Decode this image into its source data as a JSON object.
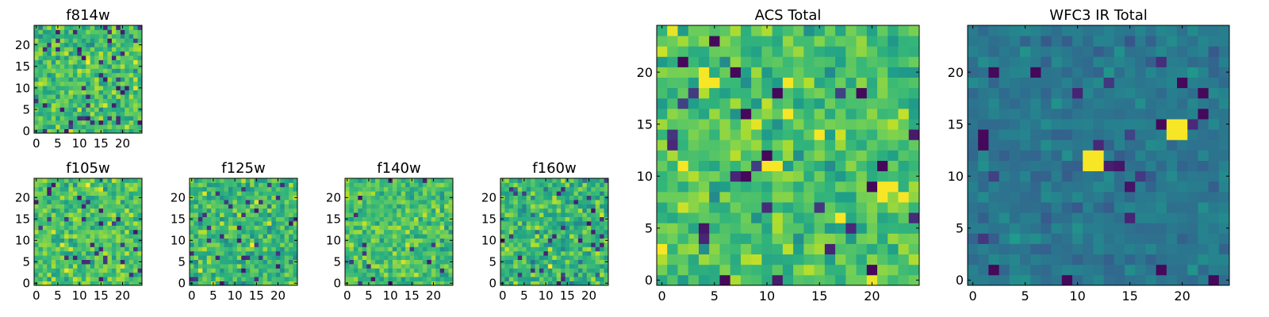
{
  "chart_data": [
    {
      "type": "heatmap",
      "title": "f814w",
      "colormap": "viridis",
      "grid": false,
      "xlim": [
        0,
        25
      ],
      "ylim": [
        0,
        25
      ],
      "size": [
        25,
        25
      ],
      "xticks": [
        0,
        5,
        10,
        15,
        20
      ],
      "yticks": [
        0,
        5,
        10,
        15,
        20
      ],
      "xtick_labels": [
        "0",
        "5",
        "10",
        "15",
        "20"
      ],
      "ytick_labels": [
        "0",
        "5",
        "10",
        "15",
        "20"
      ],
      "value_range": [
        0,
        1
      ],
      "mean_level": 0.7,
      "spread": 0.18,
      "dark_fraction": 0.07
    },
    {
      "type": "heatmap",
      "title": "f105w",
      "colormap": "viridis",
      "grid": false,
      "xlim": [
        0,
        25
      ],
      "ylim": [
        0,
        25
      ],
      "size": [
        25,
        25
      ],
      "xticks": [
        0,
        5,
        10,
        15,
        20
      ],
      "yticks": [
        0,
        5,
        10,
        15,
        20
      ],
      "xtick_labels": [
        "0",
        "5",
        "10",
        "15",
        "20"
      ],
      "ytick_labels": [
        "0",
        "5",
        "10",
        "15",
        "20"
      ],
      "value_range": [
        0,
        1
      ],
      "mean_level": 0.72,
      "spread": 0.16,
      "dark_fraction": 0.04
    },
    {
      "type": "heatmap",
      "title": "f125w",
      "colormap": "viridis",
      "grid": false,
      "xlim": [
        0,
        25
      ],
      "ylim": [
        0,
        25
      ],
      "size": [
        25,
        25
      ],
      "xticks": [
        0,
        5,
        10,
        15,
        20
      ],
      "yticks": [
        0,
        5,
        10,
        15,
        20
      ],
      "xtick_labels": [
        "0",
        "5",
        "10",
        "15",
        "20"
      ],
      "ytick_labels": [
        "0",
        "5",
        "10",
        "15",
        "20"
      ],
      "value_range": [
        0,
        1
      ],
      "mean_level": 0.68,
      "spread": 0.17,
      "dark_fraction": 0.05
    },
    {
      "type": "heatmap",
      "title": "f140w",
      "colormap": "viridis",
      "grid": false,
      "xlim": [
        0,
        25
      ],
      "ylim": [
        0,
        25
      ],
      "size": [
        25,
        25
      ],
      "xticks": [
        0,
        5,
        10,
        15,
        20
      ],
      "yticks": [
        0,
        5,
        10,
        15,
        20
      ],
      "xtick_labels": [
        "0",
        "5",
        "10",
        "15",
        "20"
      ],
      "ytick_labels": [
        "0",
        "5",
        "10",
        "15",
        "20"
      ],
      "value_range": [
        0,
        1
      ],
      "mean_level": 0.7,
      "spread": 0.16,
      "dark_fraction": 0.03
    },
    {
      "type": "heatmap",
      "title": "f160w",
      "colormap": "viridis",
      "grid": false,
      "xlim": [
        0,
        25
      ],
      "ylim": [
        0,
        25
      ],
      "size": [
        25,
        25
      ],
      "xticks": [
        0,
        5,
        10,
        15,
        20
      ],
      "yticks": [
        0,
        5,
        10,
        15,
        20
      ],
      "xtick_labels": [
        "0",
        "5",
        "10",
        "15",
        "20"
      ],
      "ytick_labels": [
        "0",
        "5",
        "10",
        "15",
        "20"
      ],
      "value_range": [
        0,
        1
      ],
      "mean_level": 0.66,
      "spread": 0.18,
      "dark_fraction": 0.05
    },
    {
      "type": "heatmap",
      "title": "ACS Total",
      "colormap": "viridis",
      "grid": false,
      "xlim": [
        0,
        25
      ],
      "ylim": [
        0,
        25
      ],
      "size": [
        25,
        25
      ],
      "xticks": [
        0,
        5,
        10,
        15,
        20
      ],
      "yticks": [
        0,
        5,
        10,
        15,
        20
      ],
      "xtick_labels": [
        "0",
        "5",
        "10",
        "15",
        "20"
      ],
      "ytick_labels": [
        "0",
        "5",
        "10",
        "15",
        "20"
      ],
      "value_range": [
        0,
        1
      ],
      "mean_level": 0.7,
      "spread": 0.16,
      "dark_fraction": 0.03,
      "dark_pixels": [
        [
          8,
          16
        ],
        [
          10,
          12
        ],
        [
          8,
          10
        ],
        [
          7,
          20
        ],
        [
          11,
          18
        ],
        [
          20,
          9
        ],
        [
          21,
          11
        ],
        [
          6,
          0
        ],
        [
          19,
          18
        ],
        [
          2,
          21
        ],
        [
          5,
          23
        ],
        [
          20,
          1
        ]
      ],
      "bright_pixels": [
        [
          4,
          20
        ],
        [
          5,
          19
        ],
        [
          4,
          19
        ],
        [
          10,
          11
        ],
        [
          11,
          11
        ],
        [
          21,
          9
        ],
        [
          22,
          9
        ],
        [
          21,
          8
        ],
        [
          23,
          8
        ],
        [
          0,
          3
        ],
        [
          15,
          14
        ],
        [
          17,
          6
        ],
        [
          2,
          11
        ],
        [
          12,
          16
        ]
      ]
    },
    {
      "type": "heatmap",
      "title": "WFC3 IR Total",
      "colormap": "viridis",
      "grid": false,
      "xlim": [
        0,
        25
      ],
      "ylim": [
        0,
        25
      ],
      "size": [
        25,
        25
      ],
      "xticks": [
        0,
        5,
        10,
        15,
        20
      ],
      "yticks": [
        0,
        5,
        10,
        15,
        20
      ],
      "xtick_labels": [
        "0",
        "5",
        "10",
        "15",
        "20"
      ],
      "ytick_labels": [
        "0",
        "5",
        "10",
        "15",
        "20"
      ],
      "value_range": [
        0,
        1
      ],
      "mean_level": 0.4,
      "spread": 0.08,
      "dark_fraction": 0.02,
      "dark_pixels": [
        [
          1,
          14
        ],
        [
          1,
          13
        ],
        [
          18,
          15
        ],
        [
          2,
          20
        ],
        [
          6,
          20
        ],
        [
          20,
          19
        ],
        [
          22,
          18
        ],
        [
          9,
          0
        ],
        [
          23,
          0
        ],
        [
          18,
          1
        ],
        [
          2,
          1
        ],
        [
          22,
          16
        ]
      ],
      "bright_pixels": [
        [
          11,
          11
        ],
        [
          12,
          11
        ],
        [
          11,
          12
        ],
        [
          12,
          12
        ],
        [
          19,
          14
        ],
        [
          20,
          14
        ],
        [
          19,
          15
        ],
        [
          20,
          15
        ]
      ]
    }
  ]
}
